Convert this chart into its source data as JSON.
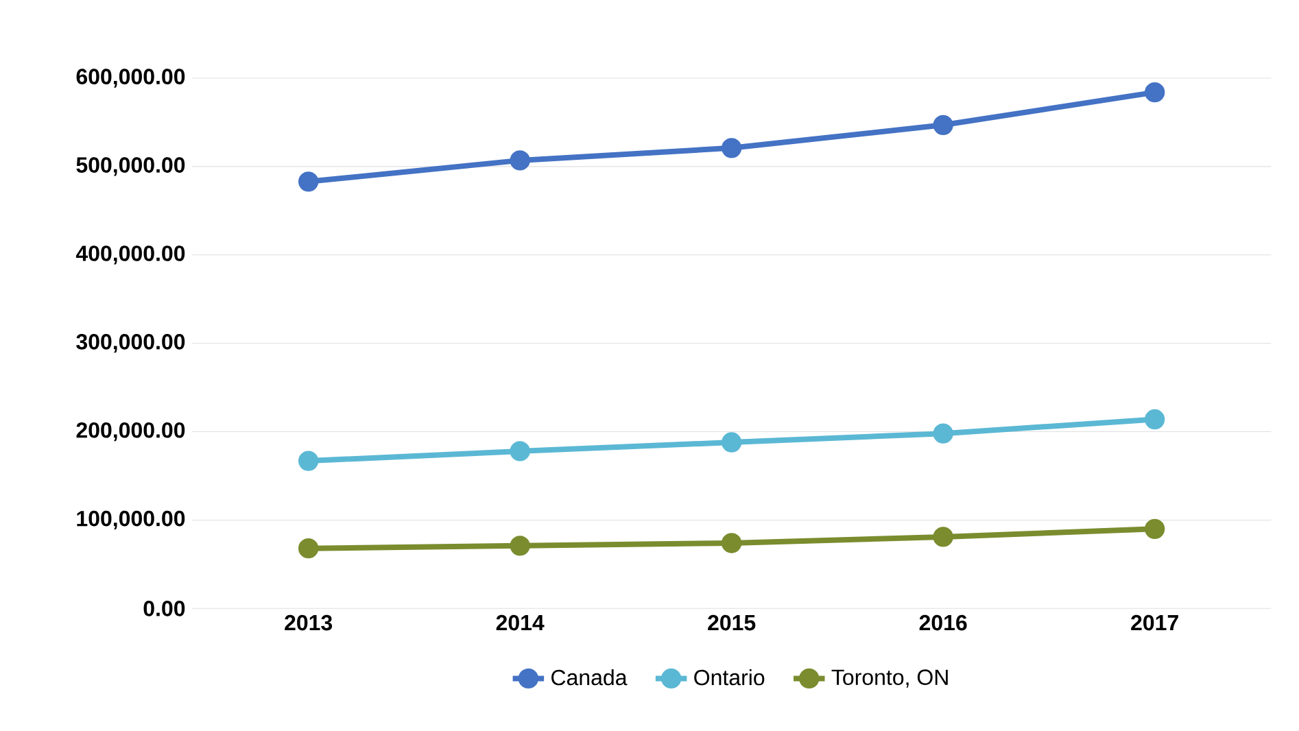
{
  "chart_data": {
    "type": "line",
    "categories": [
      "2013",
      "2014",
      "2015",
      "2016",
      "2017"
    ],
    "series": [
      {
        "name": "Canada",
        "color": "#4472c4",
        "values": [
          483000,
          507000,
          521000,
          547000,
          584000
        ]
      },
      {
        "name": "Ontario",
        "color": "#5bb8d4",
        "values": [
          167000,
          178000,
          188000,
          198000,
          214000
        ]
      },
      {
        "name": "Toronto, ON",
        "color": "#7a8c2e",
        "values": [
          68000,
          71000,
          74000,
          81000,
          90000
        ]
      }
    ],
    "ylim": [
      0,
      600000
    ],
    "yticks": [
      {
        "value": 0,
        "label": "0.00"
      },
      {
        "value": 100000,
        "label": "100,000.00"
      },
      {
        "value": 200000,
        "label": "200,000.00"
      },
      {
        "value": 300000,
        "label": "300,000.00"
      },
      {
        "value": 400000,
        "label": "400,000.00"
      },
      {
        "value": 500000,
        "label": "500,000.00"
      },
      {
        "value": 600000,
        "label": "600,000.00"
      }
    ],
    "grid": "y",
    "legend": "bottom",
    "marker": "circle",
    "line_style": "solid"
  }
}
